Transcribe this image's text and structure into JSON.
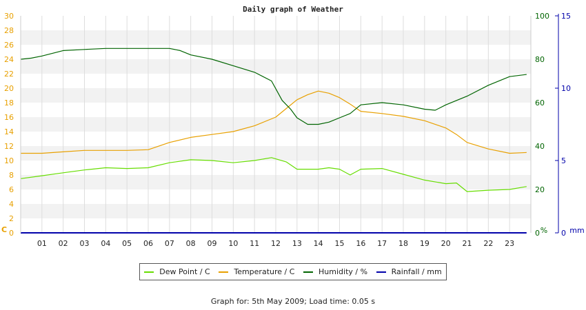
{
  "chart_data": {
    "type": "line",
    "title": "Daily graph of Weather",
    "left_axis": {
      "unit_label": "C",
      "ylim": [
        0,
        30
      ],
      "ticks": [
        0,
        2,
        4,
        6,
        8,
        10,
        12,
        14,
        16,
        18,
        20,
        22,
        24,
        26,
        28,
        30
      ],
      "color": "#e8a000"
    },
    "right_axis_1": {
      "unit_label": "%",
      "ylim": [
        0,
        100
      ],
      "ticks": [
        0,
        20,
        40,
        60,
        80,
        100
      ],
      "color": "#006400"
    },
    "right_axis_2": {
      "unit_label": "mm",
      "ylim": [
        0,
        15
      ],
      "ticks": [
        0,
        5,
        10,
        15
      ],
      "color": "#0000aa"
    },
    "x_ticks": [
      "01",
      "02",
      "03",
      "04",
      "05",
      "06",
      "07",
      "08",
      "09",
      "10",
      "11",
      "12",
      "13",
      "14",
      "15",
      "16",
      "17",
      "18",
      "19",
      "20",
      "21",
      "22",
      "23"
    ],
    "xlim": [
      0,
      24
    ],
    "grid": true,
    "legend_position": "bottom",
    "series": [
      {
        "name": "Dew Point / C",
        "axis": "left",
        "color": "#66dd00",
        "x": [
          0,
          1,
          2,
          3,
          4,
          5,
          6,
          7,
          8,
          9,
          10,
          11,
          11.8,
          12.5,
          13,
          14,
          14.5,
          15,
          15.5,
          16,
          17,
          18,
          19,
          20,
          20.5,
          21,
          22,
          23,
          23.8
        ],
        "y": [
          7.5,
          7.9,
          8.3,
          8.7,
          9.0,
          8.9,
          9.0,
          9.7,
          10.1,
          10.0,
          9.7,
          10.0,
          10.4,
          9.8,
          8.8,
          8.8,
          9.0,
          8.8,
          8.0,
          8.8,
          8.9,
          8.1,
          7.3,
          6.8,
          6.9,
          5.7,
          5.9,
          6.0,
          6.4
        ]
      },
      {
        "name": "Temperature / C",
        "axis": "left",
        "color": "#e8a000",
        "x": [
          0,
          1,
          2,
          3,
          4,
          5,
          6,
          7,
          8,
          9,
          10,
          11,
          12,
          12.5,
          13,
          13.5,
          14,
          14.5,
          15,
          15.5,
          16,
          17,
          18,
          19,
          20,
          20.5,
          21,
          22,
          23,
          23.8
        ],
        "y": [
          11.0,
          11.0,
          11.2,
          11.4,
          11.4,
          11.4,
          11.5,
          12.5,
          13.2,
          13.6,
          14.0,
          14.8,
          16.0,
          17.2,
          18.4,
          19.1,
          19.6,
          19.3,
          18.7,
          17.8,
          16.8,
          16.5,
          16.1,
          15.5,
          14.5,
          13.6,
          12.5,
          11.6,
          11.0,
          11.1
        ]
      },
      {
        "name": "Humidity / %",
        "axis": "right_1",
        "color": "#006400",
        "x": [
          0,
          0.5,
          1,
          2,
          3,
          4,
          5,
          6,
          7,
          7.5,
          8,
          9,
          10,
          11,
          11.8,
          12.3,
          12.7,
          13,
          13.5,
          14,
          14.5,
          15,
          15.5,
          16,
          17,
          18,
          19,
          19.5,
          20,
          21,
          22,
          23,
          23.8
        ],
        "y": [
          80,
          80.5,
          81.5,
          84,
          84.5,
          85,
          85,
          85,
          85,
          84,
          82,
          80,
          77,
          74,
          70,
          61,
          57,
          53,
          50,
          50,
          51,
          53,
          55,
          59,
          60,
          59,
          57,
          56.5,
          59,
          63,
          68,
          72,
          73
        ]
      },
      {
        "name": "Rainfall / mm",
        "axis": "right_2",
        "color": "#0000aa",
        "x": [
          0,
          23.8
        ],
        "y": [
          0,
          0
        ]
      }
    ]
  },
  "footer": {
    "prefix": "Graph for: ",
    "date": "5th May 2009",
    "separator": "; ",
    "load_label": "Load time: ",
    "load_time": "0.05 s"
  }
}
